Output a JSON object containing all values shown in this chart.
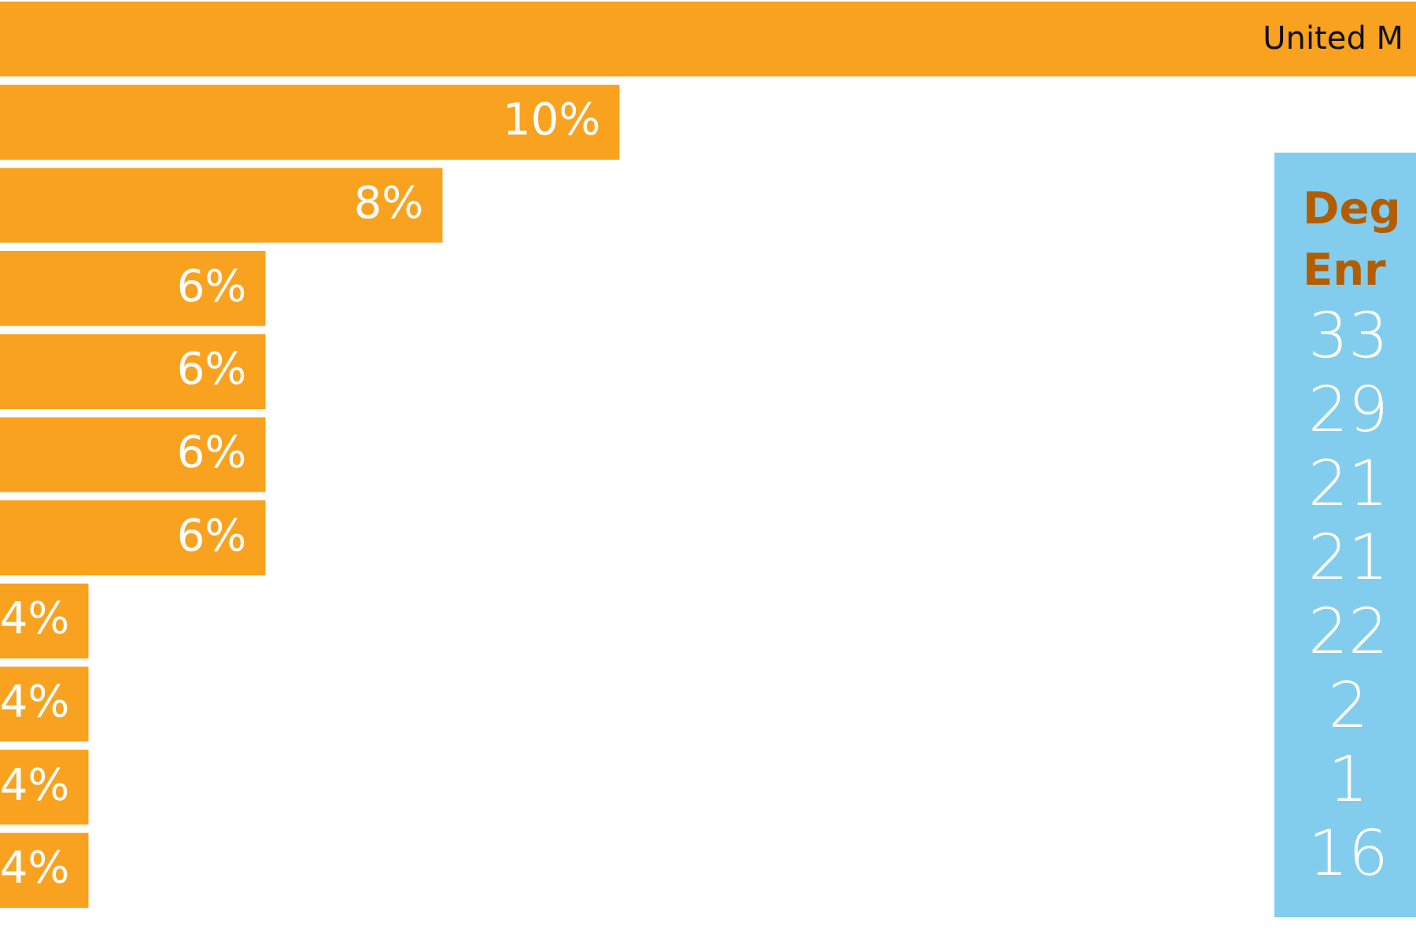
{
  "chart_data": [
    {
      "type": "bar",
      "orientation": "horizontal",
      "categories": [
        "United M",
        null,
        null,
        null,
        null,
        null,
        null,
        null,
        null,
        null,
        null
      ],
      "values": [
        19,
        10,
        8,
        6,
        6,
        6,
        6,
        4,
        4,
        4,
        4
      ],
      "value_labels": [
        null,
        "10%",
        "8%",
        "6%",
        "6%",
        "6%",
        "6%",
        "4%",
        "4%",
        "4%",
        "4%"
      ],
      "color": "#f9a21f",
      "xlim": [
        3,
        19
      ],
      "tick_labels": false
    },
    {
      "type": "other",
      "title": "Deg\nEnr",
      "annotations": [
        "33",
        "29",
        "21",
        "21",
        "22",
        "2",
        "1",
        "16"
      ]
    }
  ]
}
